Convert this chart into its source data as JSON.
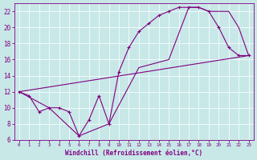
{
  "xlabel": "Windchill (Refroidissement éolien,°C)",
  "bg_color": "#c8e8e8",
  "line_color": "#800080",
  "xlim": [
    -0.5,
    23.5
  ],
  "ylim": [
    6,
    23
  ],
  "yticks": [
    6,
    8,
    10,
    12,
    14,
    16,
    18,
    20,
    22
  ],
  "xticks": [
    0,
    1,
    2,
    3,
    4,
    5,
    6,
    7,
    8,
    9,
    10,
    11,
    12,
    13,
    14,
    15,
    16,
    17,
    18,
    19,
    20,
    21,
    22,
    23
  ],
  "series": [
    {
      "x": [
        0,
        1,
        2,
        3,
        4,
        5,
        6,
        7,
        8,
        9,
        10,
        11,
        12,
        13,
        14,
        15,
        16,
        17,
        18,
        19,
        20,
        21,
        22,
        23
      ],
      "y": [
        12,
        11.5,
        9.5,
        10,
        10,
        9.5,
        6.5,
        8.5,
        11.5,
        8,
        14.5,
        17.5,
        19.5,
        20.5,
        21.5,
        22,
        22.5,
        22.5,
        22.5,
        22,
        20,
        17.5,
        16.5,
        16.5
      ]
    },
    {
      "x": [
        0,
        3,
        6,
        9,
        12,
        15,
        17,
        18,
        19,
        21,
        22,
        23
      ],
      "y": [
        12,
        10,
        6.5,
        8,
        15,
        16,
        22.5,
        22.5,
        22,
        22,
        20,
        16.5
      ]
    },
    {
      "x": [
        0,
        23
      ],
      "y": [
        12,
        16.5
      ]
    }
  ]
}
